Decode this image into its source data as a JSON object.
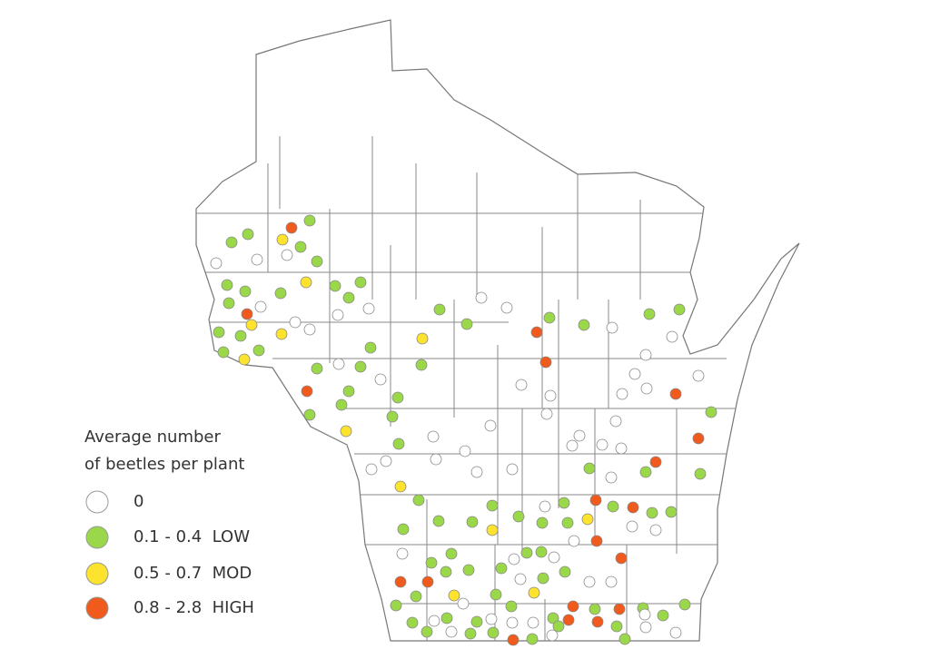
{
  "legend": {
    "title_lines": [
      "Average number",
      "of beetles per plant"
    ],
    "items": [
      {
        "label": "0",
        "color": "#ffffff"
      },
      {
        "label": "0.1 - 0.4  LOW",
        "color": "#9ad84a"
      },
      {
        "label": "0.5 - 0.7  MOD",
        "color": "#fde22e"
      },
      {
        "label": "0.8 - 2.8  HIGH",
        "color": "#f05a1c"
      }
    ]
  }
}
